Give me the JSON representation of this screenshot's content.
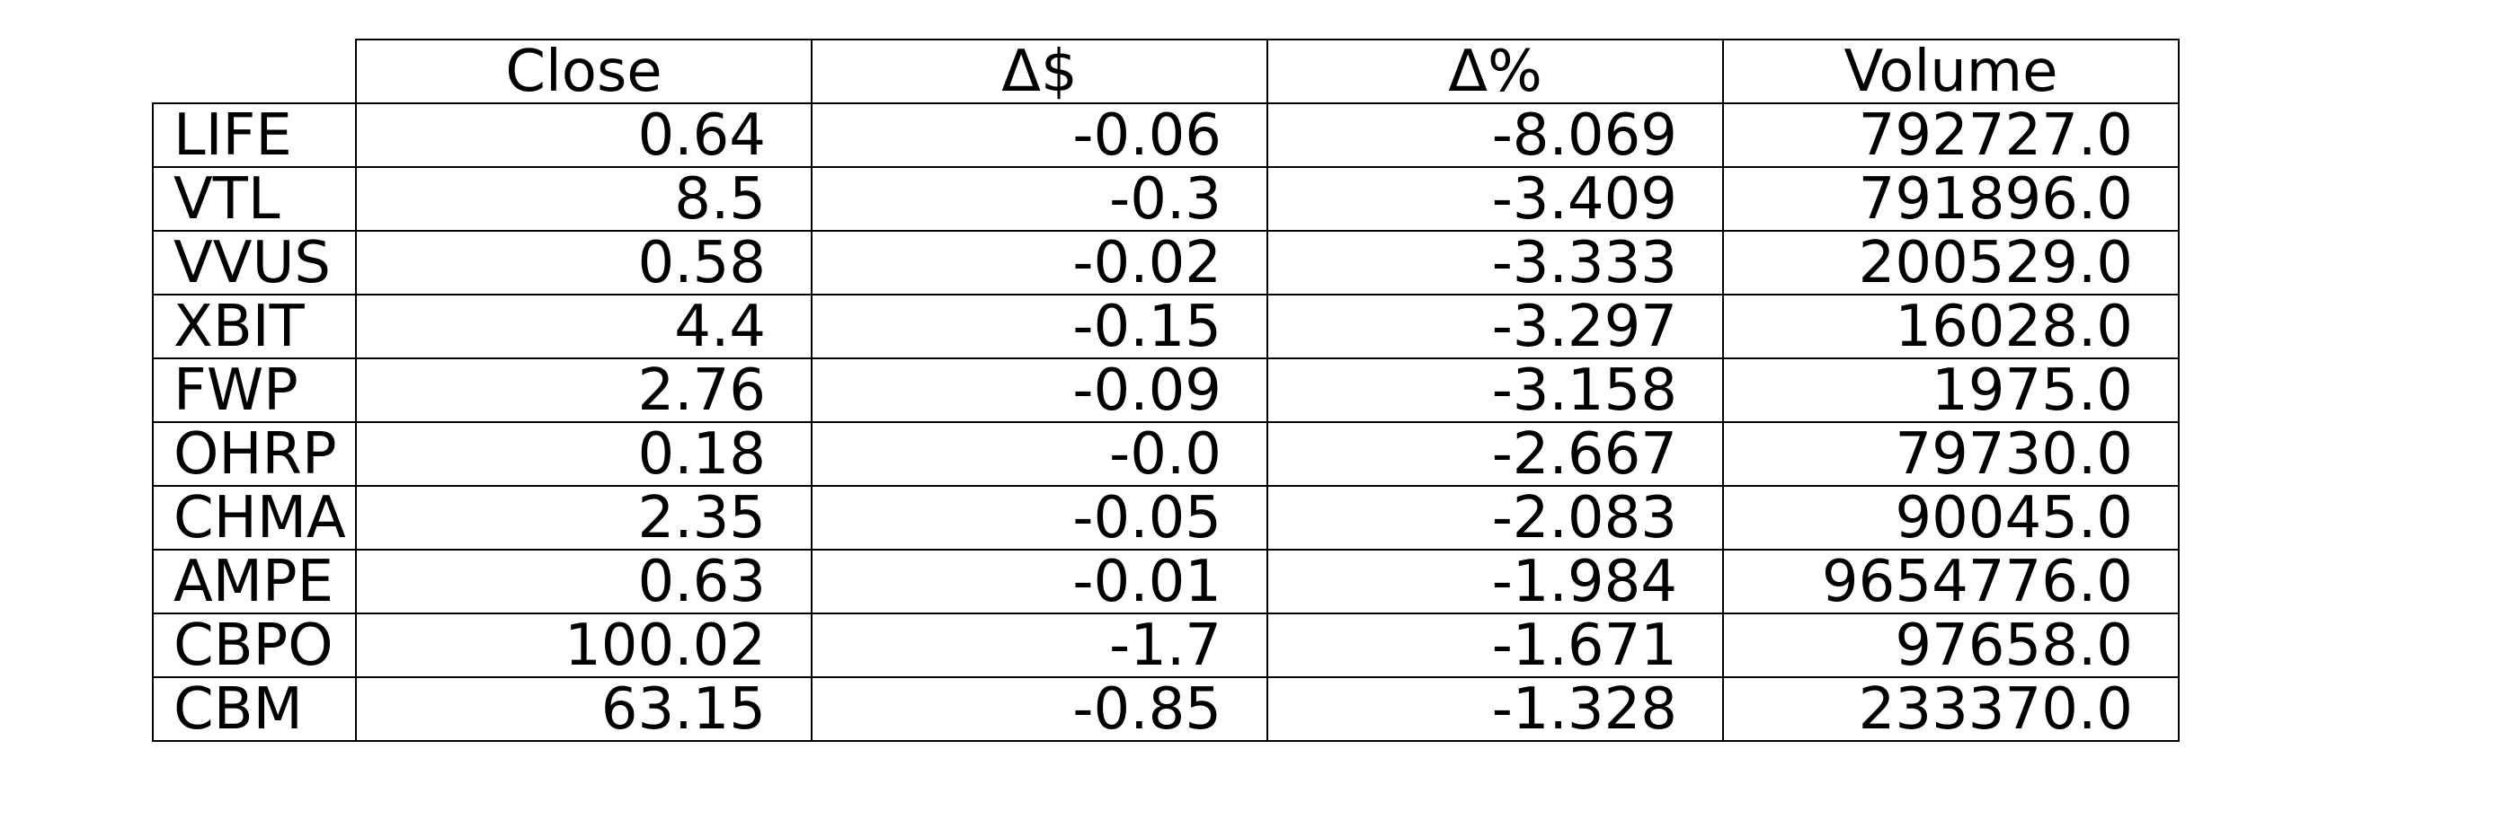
{
  "chart_data": {
    "type": "table",
    "columns": [
      "Close",
      "Δ$",
      "Δ%",
      "Volume"
    ],
    "rows": [
      {
        "ticker": "LIFE",
        "values": [
          "0.64",
          "-0.06",
          "-8.069",
          "792727.0"
        ]
      },
      {
        "ticker": "VTL",
        "values": [
          "8.5",
          "-0.3",
          "-3.409",
          "791896.0"
        ]
      },
      {
        "ticker": "VVUS",
        "values": [
          "0.58",
          "-0.02",
          "-3.333",
          "200529.0"
        ]
      },
      {
        "ticker": "XBIT",
        "values": [
          "4.4",
          "-0.15",
          "-3.297",
          "16028.0"
        ]
      },
      {
        "ticker": "FWP",
        "values": [
          "2.76",
          "-0.09",
          "-3.158",
          "1975.0"
        ]
      },
      {
        "ticker": "OHRP",
        "values": [
          "0.18",
          "-0.0",
          "-2.667",
          "79730.0"
        ]
      },
      {
        "ticker": "CHMA",
        "values": [
          "2.35",
          "-0.05",
          "-2.083",
          "90045.0"
        ]
      },
      {
        "ticker": "AMPE",
        "values": [
          "0.63",
          "-0.01",
          "-1.984",
          "9654776.0"
        ]
      },
      {
        "ticker": "CBPO",
        "values": [
          "100.02",
          "-1.7",
          "-1.671",
          "97658.0"
        ]
      },
      {
        "ticker": "CBM",
        "values": [
          "63.15",
          "-0.85",
          "-1.328",
          "233370.0"
        ]
      }
    ]
  }
}
